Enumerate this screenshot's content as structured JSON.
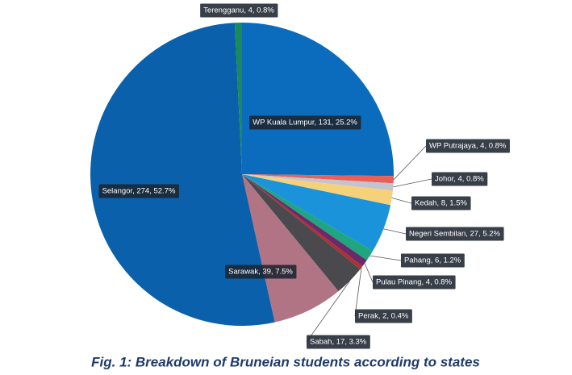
{
  "chart_data": {
    "type": "pie",
    "title": "Fig. 1: Breakdown of Bruneian students according to states",
    "values": [
      131,
      4,
      4,
      8,
      27,
      6,
      4,
      2,
      17,
      39,
      274,
      4
    ],
    "value_labels": [
      "WP Kuala Lumpur, 131, 25.2%",
      "WP Putrajaya, 4, 0.8%",
      "Johor, 4, 0.8%",
      "Kedah, 8, 1.5%",
      "Negeri Sembilan, 27, 5.2%",
      "Pahang, 6, 1.2%",
      "Pulau Pinang, 4, 0.8%",
      "Perak, 2, 0.4%",
      "Sabah, 17, 3.3%",
      "Sarawak, 39, 7.5%",
      "Selangor, 274, 52.7%",
      "Terengganu, 4, 0.8%"
    ],
    "colors": [
      "#0b6cbd",
      "#e8605a",
      "#c4c4cc",
      "#f5d27a",
      "#1a93db",
      "#1fa57f",
      "#6a2a6a",
      "#b03030",
      "#4a4a4e",
      "#b07484",
      "#0a60aa",
      "#1a8a5a"
    ]
  }
}
